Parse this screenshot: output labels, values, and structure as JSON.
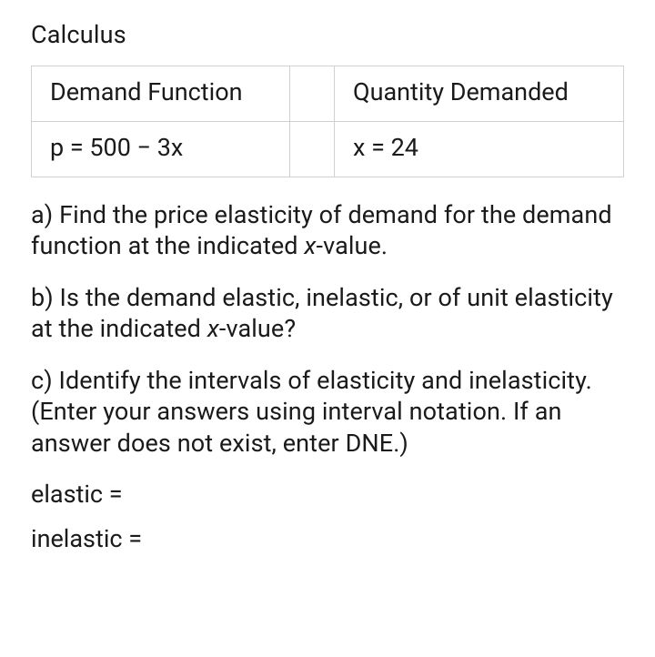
{
  "subject": "Calculus",
  "table": {
    "headers": {
      "left": "Demand Function",
      "right": "Quantity Demanded"
    },
    "values": {
      "left": "p = 500 − 3x",
      "right": "x = 24"
    }
  },
  "questions": {
    "a_prefix": "a) Find the price elasticity of demand for the demand function at the indicated ",
    "a_var": "x",
    "a_suffix": "-value.",
    "b_prefix": "b) Is the demand elastic, inelastic, or of unit elasticity at the indicated ",
    "b_var": "x",
    "b_suffix": "-value?",
    "c": "c) Identify the intervals of elasticity and inelasticity. (Enter your answers using interval notation. If an answer does not exist, enter DNE.)"
  },
  "answers": {
    "elastic_label": "elastic =",
    "inelastic_label": "inelastic ="
  },
  "style": {
    "font_size_pt": 20,
    "text_color": "#1a1a1a",
    "border_color": "#d0d0d0",
    "background_color": "#ffffff"
  }
}
